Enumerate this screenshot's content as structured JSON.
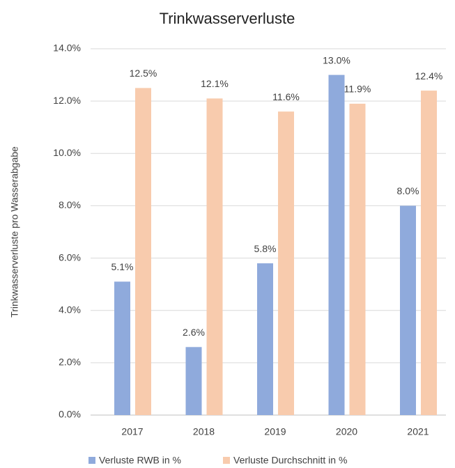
{
  "chart_data": {
    "type": "bar",
    "title": "Trinkwasserverluste",
    "y_label": "Trinkwasserverluste pro Wasserabgabe",
    "categories": [
      "2017",
      "2018",
      "2019",
      "2020",
      "2021"
    ],
    "series": [
      {
        "name": "Verluste RWB in %",
        "color": "#8faadc",
        "values": [
          5.1,
          2.6,
          5.8,
          13.0,
          8.0
        ],
        "value_labels": [
          "5.1%",
          "2.6%",
          "5.8%",
          "13.0%",
          "8.0%"
        ]
      },
      {
        "name": "Verluste Durchschnitt in %",
        "color": "#f8cbad",
        "values": [
          12.5,
          12.1,
          11.6,
          11.9,
          12.4
        ],
        "value_labels": [
          "12.5%",
          "12.1%",
          "11.6%",
          "11.9%",
          "12.4%"
        ]
      }
    ],
    "ylim": [
      0,
      14
    ],
    "yticks": [
      {
        "value": 0,
        "label": "0.0%"
      },
      {
        "value": 2,
        "label": "2.0%"
      },
      {
        "value": 4,
        "label": "4.0%"
      },
      {
        "value": 6,
        "label": "6.0%"
      },
      {
        "value": 8,
        "label": "8.0%"
      },
      {
        "value": 10,
        "label": "10.0%"
      },
      {
        "value": 12,
        "label": "12.0%"
      },
      {
        "value": 14,
        "label": "14.0%"
      }
    ],
    "grid": true
  }
}
